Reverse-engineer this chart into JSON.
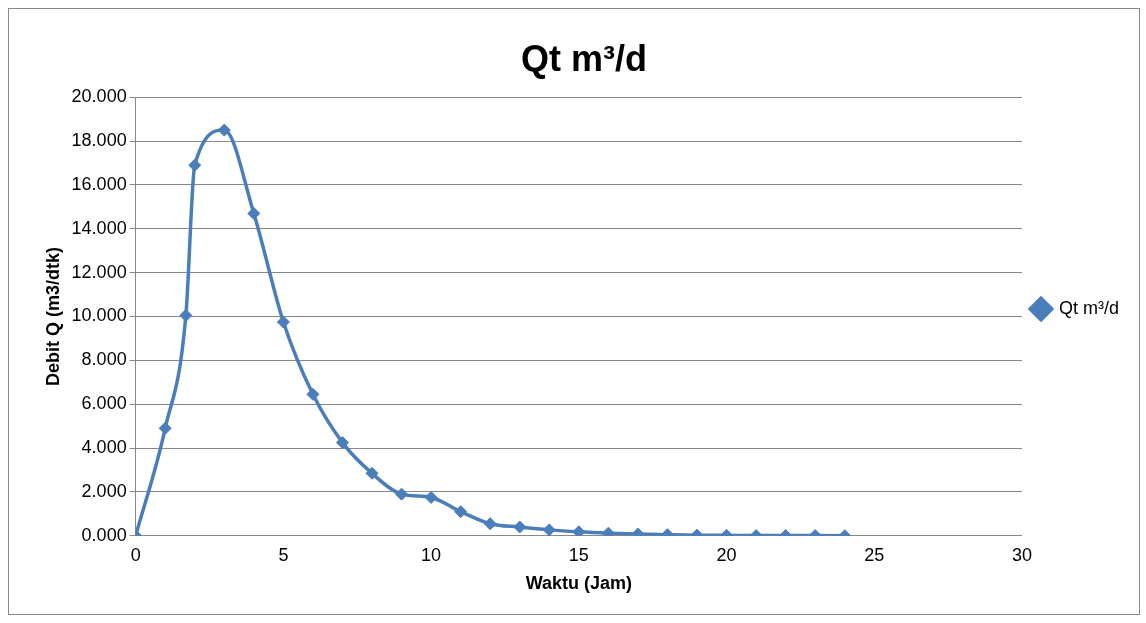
{
  "chart_data": {
    "type": "line",
    "title": "Qt m³/d",
    "xlabel": "Waktu (Jam)",
    "ylabel": "Debit Q (m3/dtk)",
    "series": [
      {
        "name": "Qt m³/d",
        "color": "#4a7ebb",
        "x": [
          0,
          1,
          1.7,
          2,
          3,
          4,
          5,
          6,
          7,
          8,
          9,
          10,
          11,
          12,
          13,
          14,
          15,
          16,
          17,
          18,
          19,
          20,
          21,
          22,
          23,
          24
        ],
        "values": [
          0,
          4.9,
          10.05,
          16.9,
          18.5,
          14.7,
          9.75,
          6.45,
          4.25,
          2.85,
          1.9,
          1.75,
          1.1,
          0.55,
          0.4,
          0.27,
          0.18,
          0.12,
          0.08,
          0.05,
          0.03,
          0.02,
          0.01,
          0.01,
          0.01,
          0
        ]
      }
    ],
    "xlim": [
      0,
      30
    ],
    "xticks": [
      0,
      5,
      10,
      15,
      20,
      25,
      30
    ],
    "ylim": [
      0,
      20
    ],
    "yticks": [
      {
        "value": 0,
        "label": "0.000"
      },
      {
        "value": 2,
        "label": "2.000"
      },
      {
        "value": 4,
        "label": "4.000"
      },
      {
        "value": 6,
        "label": "6.000"
      },
      {
        "value": 8,
        "label": "8.000"
      },
      {
        "value": 10,
        "label": "10.000"
      },
      {
        "value": 12,
        "label": "12.000"
      },
      {
        "value": 14,
        "label": "14.000"
      },
      {
        "value": 16,
        "label": "16.000"
      },
      {
        "value": 18,
        "label": "18.000"
      },
      {
        "value": 20,
        "label": "20.000"
      }
    ],
    "grid": "y",
    "legend": "right",
    "marker": "diamond",
    "line_style": "solid"
  }
}
